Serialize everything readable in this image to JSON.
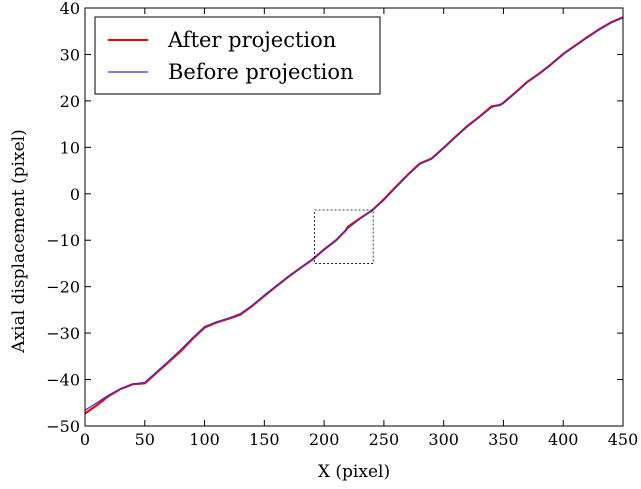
{
  "chart_data": {
    "type": "line",
    "xlabel": "X (pixel)",
    "ylabel": "Axial displacement (pixel)",
    "xlim": [
      0,
      450
    ],
    "ylim": [
      -50,
      40
    ],
    "xticks": [
      0,
      50,
      100,
      150,
      200,
      250,
      300,
      350,
      400,
      450
    ],
    "yticks": [
      -50,
      -40,
      -30,
      -20,
      -10,
      0,
      10,
      20,
      30,
      40
    ],
    "grid": false,
    "legend_position": "top-left",
    "series": [
      {
        "name": "After projection",
        "color": "#ff0000",
        "x": [
          0,
          10,
          20,
          30,
          40,
          50,
          60,
          70,
          80,
          90,
          100,
          110,
          120,
          130,
          140,
          150,
          160,
          170,
          180,
          190,
          200,
          210,
          218,
          220,
          230,
          240,
          250,
          260,
          270,
          280,
          290,
          300,
          310,
          320,
          330,
          340,
          347,
          350,
          360,
          370,
          380,
          390,
          400,
          406,
          410,
          420,
          430,
          440,
          450
        ],
        "y": [
          -47.3,
          -45.5,
          -43.5,
          -42.0,
          -41.0,
          -40.8,
          -38.5,
          -36.2,
          -33.9,
          -31.2,
          -28.8,
          -27.7,
          -26.9,
          -26.0,
          -24.1,
          -22.0,
          -19.9,
          -17.9,
          -16.0,
          -14.2,
          -12.0,
          -10.0,
          -7.9,
          -7.1,
          -5.3,
          -3.6,
          -1.2,
          1.5,
          4.1,
          6.5,
          7.6,
          9.9,
          12.3,
          14.6,
          16.6,
          18.8,
          19.1,
          19.6,
          21.8,
          24.1,
          25.9,
          27.9,
          30.1,
          31.2,
          31.9,
          33.7,
          35.4,
          36.9,
          38.0
        ]
      },
      {
        "name": "Before projection",
        "color": "#3333cc",
        "x": [
          0,
          10,
          20,
          30,
          40,
          50,
          60,
          70,
          80,
          90,
          100,
          110,
          120,
          130,
          140,
          150,
          160,
          170,
          180,
          190,
          200,
          210,
          220,
          230,
          240,
          250,
          260,
          270,
          280,
          290,
          300,
          310,
          320,
          330,
          340,
          350,
          360,
          370,
          380,
          390,
          400,
          410,
          420,
          430,
          440,
          450
        ],
        "y": [
          -46.6,
          -45.0,
          -43.3,
          -42.0,
          -41.0,
          -40.6,
          -38.3,
          -36.0,
          -33.6,
          -31.0,
          -28.6,
          -27.6,
          -26.8,
          -25.8,
          -24.0,
          -21.8,
          -19.8,
          -17.8,
          -16.0,
          -14.1,
          -12.1,
          -10.0,
          -7.4,
          -5.4,
          -3.6,
          -1.4,
          1.4,
          4.0,
          6.4,
          7.5,
          9.8,
          12.2,
          14.5,
          16.5,
          18.6,
          19.5,
          21.7,
          24.0,
          25.8,
          27.9,
          30.1,
          31.8,
          33.6,
          35.3,
          36.8,
          37.9
        ]
      }
    ],
    "annotation": {
      "type": "dashed-rectangle",
      "x_range": [
        192,
        241
      ],
      "y_range": [
        -15.0,
        -3.5
      ]
    }
  }
}
